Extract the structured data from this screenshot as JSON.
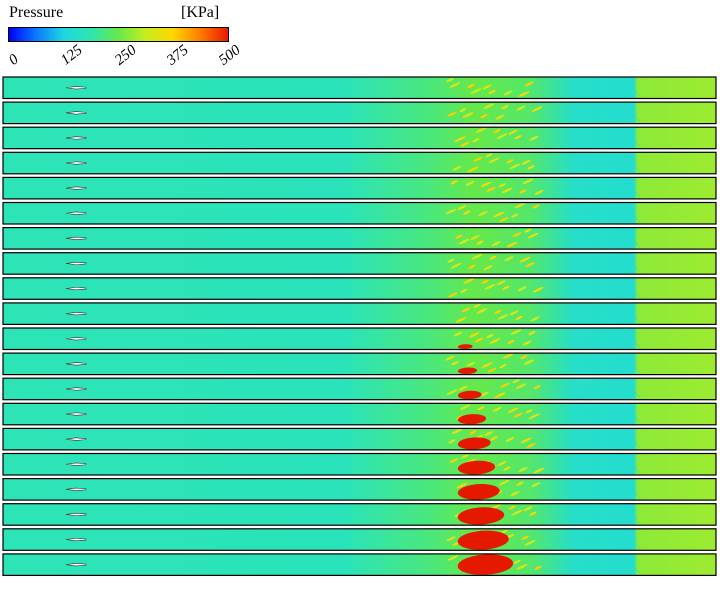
{
  "legend": {
    "title": "Pressure",
    "unit": "[KPa]",
    "ticks": [
      "0",
      "125",
      "250",
      "375",
      "500"
    ],
    "range": [
      0,
      500
    ],
    "colormap": [
      "#0000ff",
      "#0a7aff",
      "#1ed7e0",
      "#2ee6b0",
      "#66e84a",
      "#c8ee1e",
      "#ffd600",
      "#ff7a00",
      "#e81a00"
    ]
  },
  "panels": {
    "count": 20,
    "background_pressure_kpa": 180,
    "shock_region_pressure_kpa": 260,
    "downstream_pressure_kpa": 275,
    "high_pressure_color": "#e51900",
    "injector_color": "#ffffff"
  }
}
